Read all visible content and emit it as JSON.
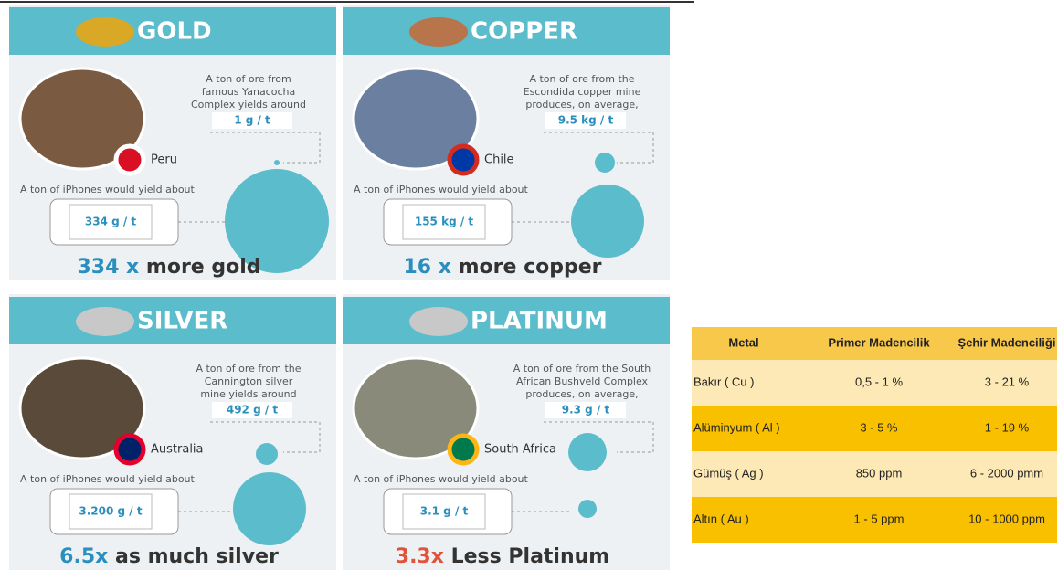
{
  "panels": [
    {
      "metal": "GOLD",
      "ore_text": [
        "A ton of ore from",
        "famous Yanacocha",
        "Complex yields around"
      ],
      "ore_value": "1 g / t",
      "country": "Peru",
      "iphone_text": "A ton of iPhones would yield about",
      "iphone_value": "334 g / t",
      "comparison_number": "334 x",
      "comparison_text": "more gold"
    },
    {
      "metal": "COPPER",
      "ore_text": [
        "A ton of ore from the",
        "Escondida copper mine",
        "produces, on average,"
      ],
      "ore_value": "9.5 kg / t",
      "country": "Chile",
      "iphone_text": "A ton of iPhones would yield about",
      "iphone_value": "155 kg / t",
      "comparison_number": "16 x",
      "comparison_text": "more copper"
    },
    {
      "metal": "SILVER",
      "ore_text": [
        "A ton of ore from the",
        "Cannington silver",
        "mine yields around"
      ],
      "ore_value": "492 g / t",
      "country": "Australia",
      "iphone_text": "A ton of iPhones would yield about",
      "iphone_value": "3.200 g / t",
      "comparison_number": "6.5x",
      "comparison_text": "as much silver"
    },
    {
      "metal": "PLATINUM",
      "ore_text": [
        "A ton of ore from the South",
        "African Bushveld Complex",
        "produces, on average,"
      ],
      "ore_value": "9.3 g / t",
      "country": "South Africa",
      "iphone_text": "A ton of iPhones would yield about",
      "iphone_value": "3.1 g / t",
      "comparison_number": "3.3x",
      "comparison_text": "Less Platinum"
    }
  ],
  "table": {
    "header": [
      "Metal",
      "Primer Madencilik",
      "Şehir Madenciliği"
    ],
    "rows": [
      [
        "Bakır ( Cu )",
        "0,5 - 1 %",
        "3 - 21 %"
      ],
      [
        "Alüminyum ( Al )",
        "3 - 5 %",
        "1 - 19 %"
      ],
      [
        "Gümüş ( Ag )",
        "850 ppm",
        "6 - 2000 pmm"
      ],
      [
        "Altın ( Au )",
        "1 - 5 ppm",
        "10 - 1000 ppm"
      ]
    ]
  }
}
